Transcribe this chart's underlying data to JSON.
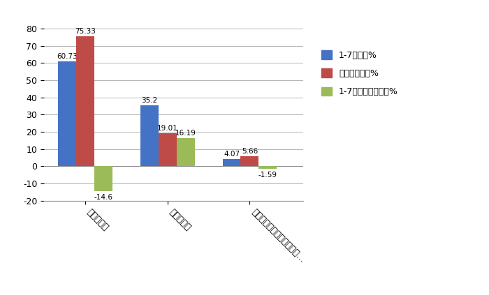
{
  "categories": [
    "柴油牵引车",
    "燃气牵引车",
    "新能源牵引车（含纯电动、…"
  ],
  "series": {
    "1-7月占比%": [
      60.73,
      35.2,
      4.07
    ],
    "去年同期占比%": [
      75.33,
      19.01,
      5.66
    ],
    "1-7月占比同比增减%": [
      -14.6,
      16.19,
      -1.59
    ]
  },
  "colors": {
    "1-7月占比%": "#4472C4",
    "去年同期占比%": "#BE4B48",
    "1-7月占比同比增减%": "#9BBB59"
  },
  "ylim": [
    -20,
    88
  ],
  "yticks": [
    -20,
    -10,
    0,
    10,
    20,
    30,
    40,
    50,
    60,
    70,
    80
  ],
  "bar_width": 0.22,
  "background_color": "#FFFFFF",
  "plot_bg_color": "#FFFFFF",
  "grid_color": "#AAAAAA"
}
